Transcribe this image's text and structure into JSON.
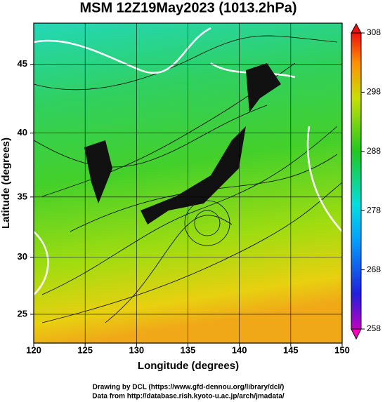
{
  "chart_data": {
    "type": "map",
    "title": "MSM 12Z19May2023 (1013.2hPa)",
    "x_label": "Longitude (degrees)",
    "y_label": "Latitude  (degrees)",
    "xlim": [
      120,
      150
    ],
    "xticks": [
      120,
      125,
      130,
      135,
      140,
      145,
      150
    ],
    "ylim": [
      22.4,
      47.8
    ],
    "yticks": [
      25,
      30,
      35,
      40,
      45
    ],
    "grid": true,
    "colorbar": {
      "lim": [
        258,
        308
      ],
      "ticks": [
        258,
        268,
        278,
        288,
        298,
        308
      ]
    },
    "credits": [
      "Drawing by DCL (https://www.gfd-dennou.org/library/dcl/)",
      "Data from http://database.rish.kyoto-u.ac.jp/arch/jmadata/"
    ]
  }
}
